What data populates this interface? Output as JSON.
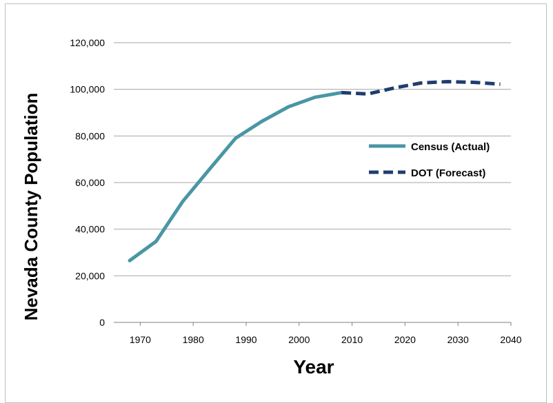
{
  "chart_data": {
    "type": "line",
    "xlabel": "Year",
    "ylabel": "Nevada County Population",
    "xlim": [
      1965,
      2040
    ],
    "ylim": [
      0,
      120000
    ],
    "x_ticks": [
      "1970",
      "1980",
      "1990",
      "2000",
      "2010",
      "2020",
      "2030",
      "2040"
    ],
    "x_tick_values": [
      1970,
      1980,
      1990,
      2000,
      2010,
      2020,
      2030,
      2040
    ],
    "y_ticks": [
      "0",
      "20,000",
      "40,000",
      "60,000",
      "80,000",
      "100,000",
      "120,000"
    ],
    "y_tick_values": [
      0,
      20000,
      40000,
      60000,
      80000,
      100000,
      120000
    ],
    "grid": "horizontal",
    "legend_position": "right",
    "series": [
      {
        "name": "Census (Actual)",
        "style": "solid",
        "color": "#4a96a4",
        "x": [
          1968,
          1973,
          1978,
          1983,
          1988,
          1993,
          1998,
          2003,
          2008
        ],
        "y": [
          26500,
          34800,
          51800,
          65500,
          79000,
          86300,
          92500,
          96600,
          98600
        ]
      },
      {
        "name": "DOT (Forecast)",
        "style": "dashed",
        "color": "#1f3d6e",
        "x": [
          2008,
          2013,
          2018,
          2023,
          2028,
          2033,
          2038
        ],
        "y": [
          98600,
          98000,
          100600,
          102700,
          103300,
          103000,
          102200
        ]
      }
    ]
  }
}
